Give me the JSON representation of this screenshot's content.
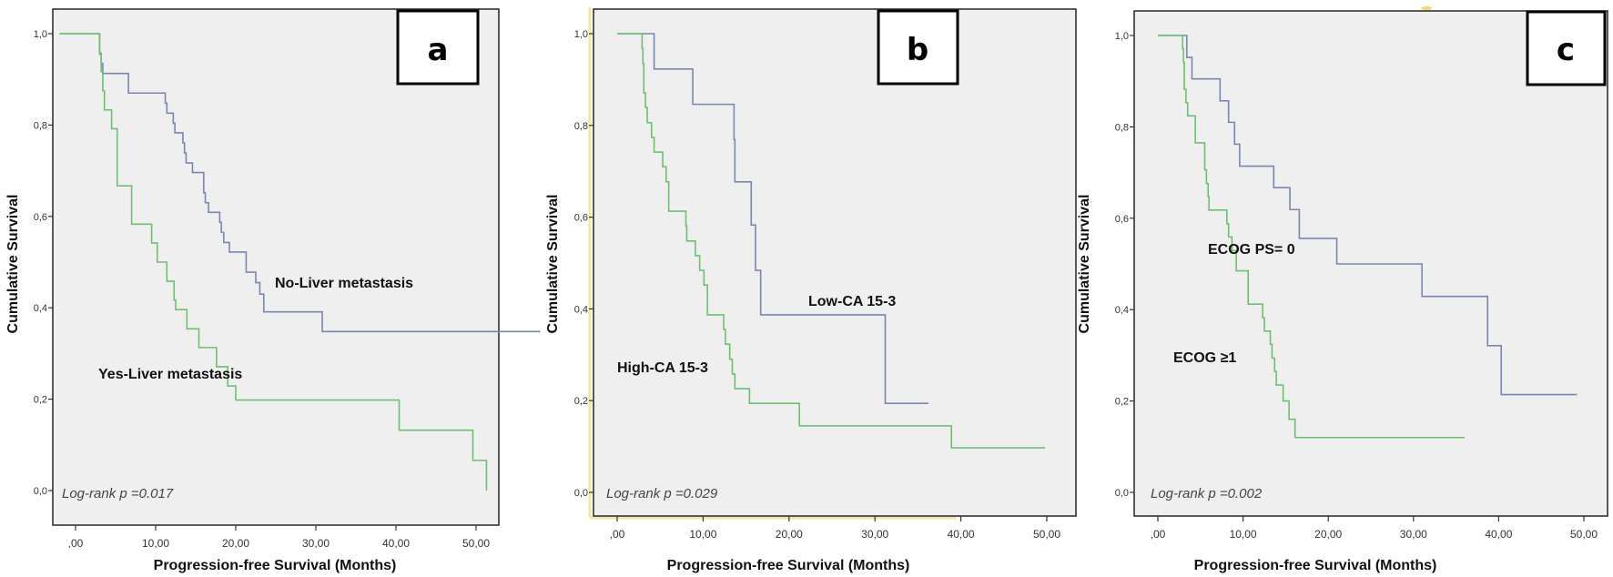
{
  "figure": {
    "panels": [
      "a",
      "b",
      "c"
    ]
  },
  "chart_data": [
    {
      "type": "line",
      "subtype": "kaplan-meier-step",
      "panel_label": "a",
      "xlabel": "Progression-free Survival (Months)",
      "ylabel": "Cumulative Survival",
      "xlim": [
        0,
        50
      ],
      "ylim": [
        0,
        1
      ],
      "x_ticks": [
        ",00",
        "10,00",
        "20,00",
        "30,00",
        "40,00",
        "50,00"
      ],
      "x_tick_values": [
        0,
        10,
        20,
        30,
        40,
        50
      ],
      "y_ticks": [
        "0,0",
        "0,2",
        "0,4",
        "0,6",
        "0,8",
        "1,0"
      ],
      "y_tick_values": [
        0,
        0.2,
        0.4,
        0.6,
        0.8,
        1.0
      ],
      "grid": false,
      "annotation": "Log-rank p =0.017",
      "series": [
        {
          "name": "No-Liver metastasis",
          "color": "#7b86b0",
          "steps": [
            [
              -2,
              1.0
            ],
            [
              3.0,
              0.957
            ],
            [
              3.2,
              0.935
            ],
            [
              3.4,
              0.913
            ],
            [
              6.6,
              0.87
            ],
            [
              11.2,
              0.848
            ],
            [
              11.4,
              0.826
            ],
            [
              12.2,
              0.804
            ],
            [
              12.4,
              0.783
            ],
            [
              13.4,
              0.761
            ],
            [
              13.6,
              0.739
            ],
            [
              13.8,
              0.717
            ],
            [
              14.6,
              0.696
            ],
            [
              16.0,
              0.652
            ],
            [
              16.2,
              0.63
            ],
            [
              16.6,
              0.609
            ],
            [
              18.0,
              0.587
            ],
            [
              18.2,
              0.565
            ],
            [
              18.5,
              0.543
            ],
            [
              19.2,
              0.522
            ],
            [
              21.3,
              0.478
            ],
            [
              22.5,
              0.455
            ],
            [
              23.0,
              0.43
            ],
            [
              23.5,
              0.391
            ],
            [
              30.8,
              0.348
            ],
            [
              58.0,
              0.348
            ]
          ]
        },
        {
          "name": "Yes-Liver metastasis",
          "color": "#6fbf73",
          "steps": [
            [
              -2,
              1.0
            ],
            [
              3.0,
              0.955
            ],
            [
              3.2,
              0.917
            ],
            [
              3.4,
              0.875
            ],
            [
              3.6,
              0.833
            ],
            [
              4.5,
              0.792
            ],
            [
              5.2,
              0.667
            ],
            [
              7.0,
              0.583
            ],
            [
              9.5,
              0.542
            ],
            [
              10.2,
              0.5
            ],
            [
              11.4,
              0.458
            ],
            [
              12.3,
              0.417
            ],
            [
              12.5,
              0.396
            ],
            [
              13.9,
              0.354
            ],
            [
              15.4,
              0.313
            ],
            [
              17.6,
              0.271
            ],
            [
              19.0,
              0.229
            ],
            [
              20.0,
              0.198
            ],
            [
              40.4,
              0.132
            ],
            [
              49.6,
              0.066
            ],
            [
              51.3,
              0.0
            ]
          ]
        }
      ]
    },
    {
      "type": "line",
      "subtype": "kaplan-meier-step",
      "panel_label": "b",
      "xlabel": "Progression-free Survival (Months)",
      "ylabel": "Cumulative Survival",
      "xlim": [
        0,
        50
      ],
      "ylim": [
        0,
        1
      ],
      "x_ticks": [
        ",00",
        "10,00",
        "20,00",
        "30,00",
        "40,00",
        "50,00"
      ],
      "x_tick_values": [
        0,
        10,
        20,
        30,
        40,
        50
      ],
      "y_ticks": [
        "0,0",
        "0,2",
        "0,4",
        "0,6",
        "0,8",
        "1,0"
      ],
      "y_tick_values": [
        0,
        0.2,
        0.4,
        0.6,
        0.8,
        1.0
      ],
      "grid": false,
      "annotation": "Log-rank p =0.029",
      "series": [
        {
          "name": "Low-CA 15-3",
          "color": "#7b86b0",
          "steps": [
            [
              0,
              1.0
            ],
            [
              4.3,
              0.923
            ],
            [
              8.8,
              0.846
            ],
            [
              13.6,
              0.769
            ],
            [
              13.7,
              0.677
            ],
            [
              15.6,
              0.583
            ],
            [
              16.1,
              0.484
            ],
            [
              16.7,
              0.387
            ],
            [
              31.2,
              0.194
            ],
            [
              36.2,
              0.194
            ]
          ]
        },
        {
          "name": "High-CA 15-3",
          "color": "#6fbf73",
          "steps": [
            [
              0,
              1.0
            ],
            [
              2.9,
              0.968
            ],
            [
              3.0,
              0.935
            ],
            [
              3.1,
              0.871
            ],
            [
              3.3,
              0.839
            ],
            [
              3.5,
              0.806
            ],
            [
              4.0,
              0.774
            ],
            [
              4.3,
              0.742
            ],
            [
              5.3,
              0.71
            ],
            [
              5.7,
              0.677
            ],
            [
              6.0,
              0.613
            ],
            [
              8.0,
              0.581
            ],
            [
              8.1,
              0.548
            ],
            [
              9.1,
              0.516
            ],
            [
              9.6,
              0.484
            ],
            [
              10.1,
              0.452
            ],
            [
              10.5,
              0.387
            ],
            [
              12.4,
              0.355
            ],
            [
              12.6,
              0.323
            ],
            [
              13.1,
              0.29
            ],
            [
              13.4,
              0.258
            ],
            [
              13.7,
              0.226
            ],
            [
              15.4,
              0.194
            ],
            [
              21.2,
              0.145
            ],
            [
              38.9,
              0.097
            ],
            [
              49.8,
              0.097
            ]
          ]
        }
      ]
    },
    {
      "type": "line",
      "subtype": "kaplan-meier-step",
      "panel_label": "c",
      "xlabel": "Progression-free Survival (Months)",
      "ylabel": "Cumulative Survival",
      "xlim": [
        0,
        50
      ],
      "ylim": [
        0,
        1
      ],
      "x_ticks": [
        ",00",
        "10,00",
        "20,00",
        "30,00",
        "40,00",
        "50,00"
      ],
      "x_tick_values": [
        0,
        10,
        20,
        30,
        40,
        50
      ],
      "y_ticks": [
        "0,0",
        "0,2",
        "0,4",
        "0,6",
        "0,8",
        "1,0"
      ],
      "y_tick_values": [
        0,
        0.2,
        0.4,
        0.6,
        0.8,
        1.0
      ],
      "grid": false,
      "annotation": "Log-rank p =0.002",
      "series": [
        {
          "name": "ECOG PS= 0",
          "color": "#7b86b0",
          "steps": [
            [
              0,
              1.0
            ],
            [
              3.4,
              0.952
            ],
            [
              4.0,
              0.905
            ],
            [
              7.3,
              0.857
            ],
            [
              8.3,
              0.81
            ],
            [
              9.0,
              0.762
            ],
            [
              9.6,
              0.714
            ],
            [
              13.6,
              0.667
            ],
            [
              15.5,
              0.619
            ],
            [
              16.6,
              0.556
            ],
            [
              21.0,
              0.5
            ],
            [
              31.0,
              0.429
            ],
            [
              38.7,
              0.321
            ],
            [
              40.3,
              0.214
            ],
            [
              49.2,
              0.214
            ]
          ]
        },
        {
          "name": "ECOG ≥1",
          "color": "#6fbf73",
          "steps": [
            [
              0,
              1.0
            ],
            [
              2.9,
              0.971
            ],
            [
              3.0,
              0.941
            ],
            [
              3.1,
              0.882
            ],
            [
              3.3,
              0.853
            ],
            [
              3.5,
              0.824
            ],
            [
              4.4,
              0.765
            ],
            [
              5.5,
              0.706
            ],
            [
              5.7,
              0.676
            ],
            [
              5.9,
              0.647
            ],
            [
              6.0,
              0.618
            ],
            [
              8.1,
              0.588
            ],
            [
              8.3,
              0.559
            ],
            [
              8.7,
              0.529
            ],
            [
              9.2,
              0.485
            ],
            [
              10.6,
              0.412
            ],
            [
              12.3,
              0.382
            ],
            [
              12.5,
              0.353
            ],
            [
              13.2,
              0.324
            ],
            [
              13.4,
              0.294
            ],
            [
              13.7,
              0.265
            ],
            [
              13.9,
              0.235
            ],
            [
              14.7,
              0.2
            ],
            [
              15.4,
              0.16
            ],
            [
              16.1,
              0.12
            ],
            [
              36.0,
              0.12
            ]
          ]
        }
      ]
    }
  ],
  "panels": {
    "a": {
      "letter": "a",
      "ylabel": "Cumulative Survival",
      "xlabel": "Progression-free Survival (Months)",
      "pval": "Log-rank p =0.017",
      "label_1": "No-Liver metastasis",
      "label_2": "Yes-Liver metastasis"
    },
    "b": {
      "letter": "b",
      "ylabel": "Cumulative Survival",
      "xlabel": "Progression-free Survival (Months)",
      "pval": "Log-rank p =0.029",
      "label_1": "Low-CA 15-3",
      "label_2": "High-CA 15-3"
    },
    "c": {
      "letter": "c",
      "ylabel": "Cumulative Survival",
      "xlabel": "Progression-free Survival (Months)",
      "pval": "Log-rank p =0.002",
      "label_1": "ECOG PS= 0",
      "label_2": "ECOG ≥1"
    }
  }
}
